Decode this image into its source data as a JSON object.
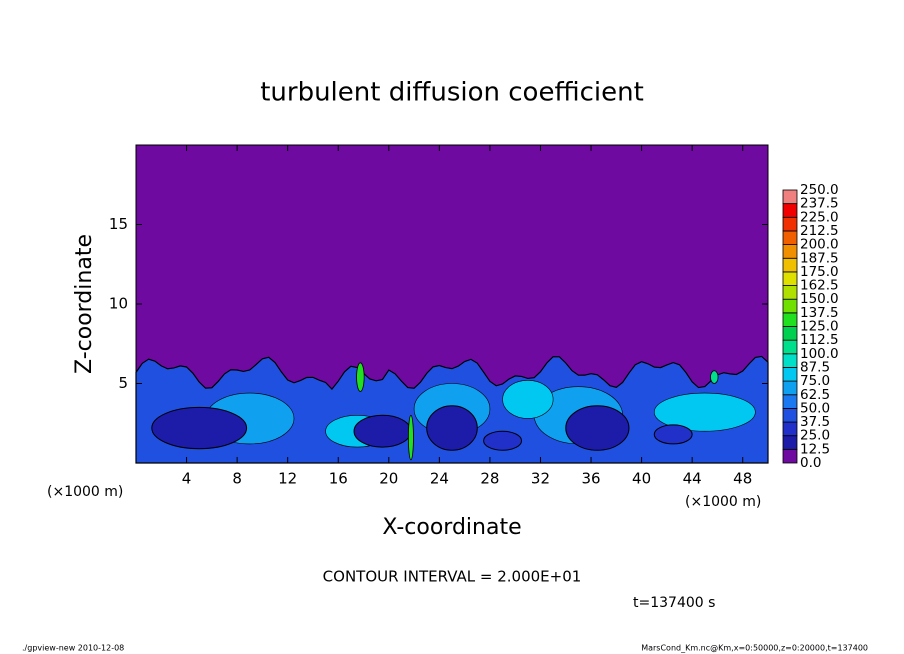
{
  "chart_data": {
    "type": "contour",
    "title": "turbulent diffusion coefficient",
    "x_label": "X-coordinate",
    "y_label": "Z-coordinate",
    "x_unit_label_left": "(×1000 m)",
    "x_unit_label_right": "(×1000 m)",
    "contour_interval": "CONTOUR INTERVAL = 2.000E+01",
    "time_label": "t=137400 s",
    "footer_left": "./gpview-new  2010-12-08",
    "footer_right": "MarsCond_Km.nc@Km,x=0:50000,z=0:20000,t=137400",
    "xlim": [
      0,
      50
    ],
    "xticks": [
      4,
      8,
      12,
      16,
      20,
      24,
      28,
      32,
      36,
      40,
      44,
      48
    ],
    "ylim": [
      0,
      20
    ],
    "yticks": [
      5,
      10,
      15
    ],
    "colorbar": {
      "levels": [
        {
          "value": 0,
          "label": "0.0"
        },
        {
          "value": 12.5,
          "label": "12.5"
        },
        {
          "value": 25,
          "label": "25.0"
        },
        {
          "value": 37.5,
          "label": "37.5"
        },
        {
          "value": 50,
          "label": "50.0"
        },
        {
          "value": 62.5,
          "label": "62.5"
        },
        {
          "value": 75,
          "label": "75.0"
        },
        {
          "value": 87.5,
          "label": "87.5"
        },
        {
          "value": 100,
          "label": "100.0"
        },
        {
          "value": 112.5,
          "label": "112.5"
        },
        {
          "value": 125,
          "label": "125.0"
        },
        {
          "value": 137.5,
          "label": "137.5"
        },
        {
          "value": 150,
          "label": "150.0"
        },
        {
          "value": 162.5,
          "label": "162.5"
        },
        {
          "value": 175,
          "label": "175.0"
        },
        {
          "value": 187.5,
          "label": "187.5"
        },
        {
          "value": 200,
          "label": "200.0"
        },
        {
          "value": 212.5,
          "label": "212.5"
        },
        {
          "value": 225,
          "label": "225.0"
        },
        {
          "value": 237.5,
          "label": "237.5"
        },
        {
          "value": 250,
          "label": "250.0"
        }
      ],
      "colors": [
        "#6e0aa0",
        "#1c1ca8",
        "#2030c8",
        "#2050e0",
        "#1a78f0",
        "#10a0f0",
        "#00c8f0",
        "#00e0c8",
        "#00e08c",
        "#00d050",
        "#20e020",
        "#70e000",
        "#b0e000",
        "#e0e000",
        "#f0c000",
        "#f09000",
        "#f06000",
        "#f03000",
        "#f00000",
        "#f08080"
      ]
    }
  }
}
